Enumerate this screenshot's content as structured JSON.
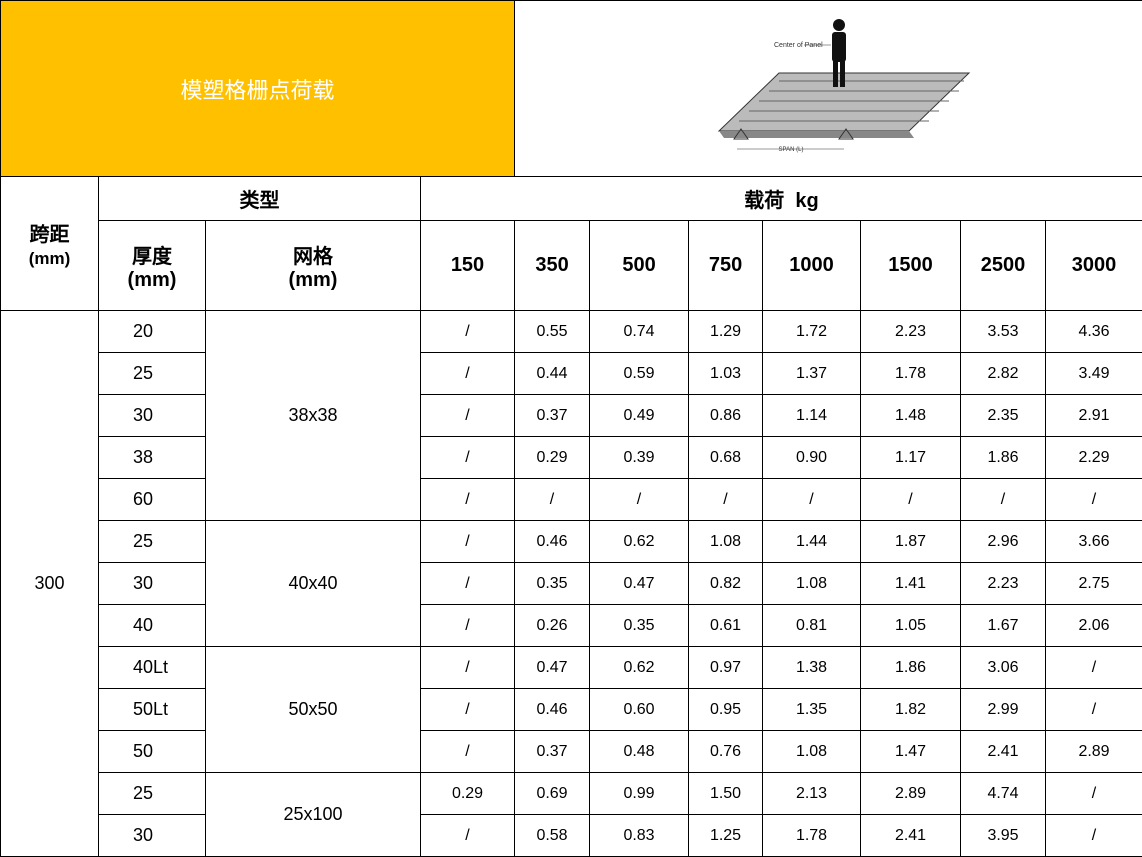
{
  "header": {
    "title": "模塑格栅点荷载",
    "diagram": {
      "center_label": "Center of Panel",
      "span_label": "SPAN (L)"
    }
  },
  "table": {
    "head": {
      "span": "跨距",
      "span_unit": "(mm)",
      "type": "类型",
      "load": "载荷  kg",
      "thickness": "厚度",
      "thickness_unit": "(mm)",
      "mesh": "网格",
      "mesh_unit": "(mm)",
      "loads": [
        "150",
        "350",
        "500",
        "750",
        "1000",
        "1500",
        "2500",
        "3000"
      ]
    },
    "span_value": "300",
    "groups": [
      {
        "mesh": "38x38",
        "rows": [
          [
            "20",
            "/",
            "0.55",
            "0.74",
            "1.29",
            "1.72",
            "2.23",
            "3.53",
            "4.36"
          ],
          [
            "25",
            "/",
            "0.44",
            "0.59",
            "1.03",
            "1.37",
            "1.78",
            "2.82",
            "3.49"
          ],
          [
            "30",
            "/",
            "0.37",
            "0.49",
            "0.86",
            "1.14",
            "1.48",
            "2.35",
            "2.91"
          ],
          [
            "38",
            "/",
            "0.29",
            "0.39",
            "0.68",
            "0.90",
            "1.17",
            "1.86",
            "2.29"
          ],
          [
            "60",
            "/",
            "/",
            "/",
            "/",
            "/",
            "/",
            "/",
            "/"
          ]
        ]
      },
      {
        "mesh": "40x40",
        "rows": [
          [
            "25",
            "/",
            "0.46",
            "0.62",
            "1.08",
            "1.44",
            "1.87",
            "2.96",
            "3.66"
          ],
          [
            "30",
            "/",
            "0.35",
            "0.47",
            "0.82",
            "1.08",
            "1.41",
            "2.23",
            "2.75"
          ],
          [
            "40",
            "/",
            "0.26",
            "0.35",
            "0.61",
            "0.81",
            "1.05",
            "1.67",
            "2.06"
          ]
        ]
      },
      {
        "mesh": "50x50",
        "rows": [
          [
            "40Lt",
            "/",
            "0.47",
            "0.62",
            "0.97",
            "1.38",
            "1.86",
            "3.06",
            "/"
          ],
          [
            "50Lt",
            "/",
            "0.46",
            "0.60",
            "0.95",
            "1.35",
            "1.82",
            "2.99",
            "/"
          ],
          [
            "50",
            "/",
            "0.37",
            "0.48",
            "0.76",
            "1.08",
            "1.47",
            "2.41",
            "2.89"
          ]
        ]
      },
      {
        "mesh": "25x100",
        "rows": [
          [
            "25",
            "0.29",
            "0.69",
            "0.99",
            "1.50",
            "2.13",
            "2.89",
            "4.74",
            "/"
          ],
          [
            "30",
            "/",
            "0.58",
            "0.83",
            "1.25",
            "1.78",
            "2.41",
            "3.95",
            "/"
          ]
        ]
      }
    ]
  }
}
